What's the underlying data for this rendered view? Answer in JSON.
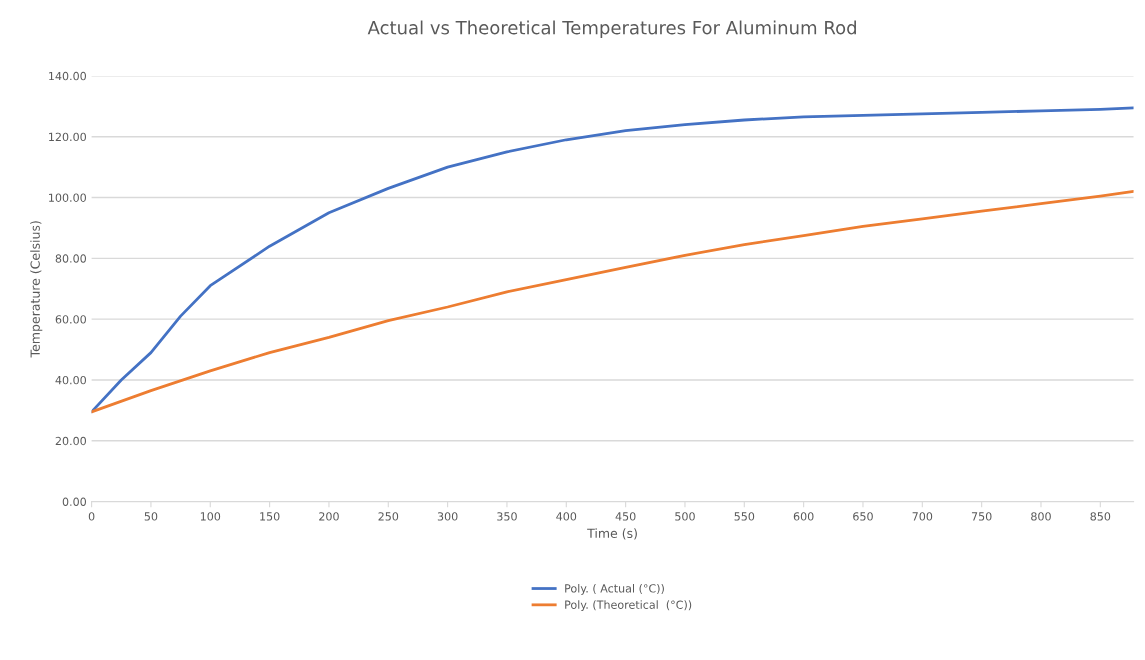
{
  "chart_data": {
    "type": "line",
    "title": "Actual vs Theoretical Temperatures For Aluminum Rod",
    "xlabel": "Time (s)",
    "ylabel": "Temperature (Celsius)",
    "xlim": [
      0,
      878
    ],
    "xticks": [
      0,
      50,
      100,
      150,
      200,
      250,
      300,
      350,
      400,
      450,
      500,
      550,
      600,
      650,
      700,
      750,
      800,
      850
    ],
    "ylim": [
      0,
      140
    ],
    "yticks": [
      {
        "value": 0,
        "label": "0.00"
      },
      {
        "value": 20,
        "label": "20.00"
      },
      {
        "value": 40,
        "label": "40.00"
      },
      {
        "value": 60,
        "label": "60.00"
      },
      {
        "value": 80,
        "label": "80.00"
      },
      {
        "value": 100,
        "label": "100.00"
      },
      {
        "value": 120,
        "label": "120.00"
      },
      {
        "value": 140,
        "label": "140.00"
      }
    ],
    "grid": "y",
    "legend": "bottom",
    "marker": "none",
    "line_style": "solid",
    "series": [
      {
        "name": "Poly. ( Actual (°C))",
        "color": "#4472c4",
        "x": [
          0,
          25,
          50,
          75,
          100,
          150,
          200,
          250,
          300,
          350,
          400,
          450,
          500,
          550,
          600,
          650,
          700,
          750,
          800,
          850,
          878
        ],
        "values": [
          29.5,
          40,
          49,
          61,
          71,
          84,
          95,
          103,
          110,
          115,
          119,
          122,
          124,
          125.5,
          126.5,
          127,
          127.5,
          128,
          128.5,
          129,
          129.5
        ]
      },
      {
        "name": "Poly. (Theoretical  (°C))",
        "color": "#ed7d31",
        "x": [
          0,
          50,
          100,
          150,
          200,
          250,
          300,
          350,
          400,
          450,
          500,
          550,
          600,
          650,
          700,
          750,
          800,
          850,
          878
        ],
        "values": [
          29.5,
          36.5,
          43,
          49,
          54,
          59.5,
          64,
          69,
          73,
          77,
          81,
          84.5,
          87.5,
          90.5,
          93,
          95.5,
          98,
          100.5,
          102
        ]
      }
    ]
  }
}
